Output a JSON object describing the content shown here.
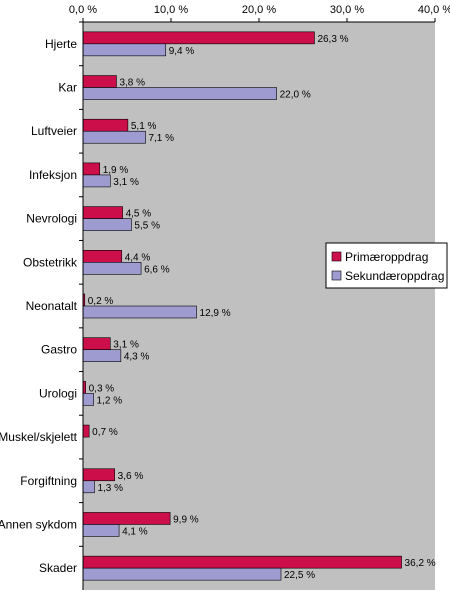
{
  "chart_data": {
    "type": "bar",
    "orientation": "horizontal",
    "categories": [
      "Hjerte",
      "Kar",
      "Luftveier",
      "Infeksjon",
      "Nevrologi",
      "Obstetrikk",
      "Neonatalt",
      "Gastro",
      "Urologi",
      "Muskel/skjelett",
      "Forgiftning",
      "Annen sykdom",
      "Skader"
    ],
    "series": [
      {
        "name": "Primæroppdrag",
        "color": "#cc0e4b",
        "values": [
          26.3,
          3.8,
          5.1,
          1.9,
          4.5,
          4.4,
          0.2,
          3.1,
          0.3,
          0.7,
          3.6,
          9.9,
          36.2
        ],
        "labels": [
          "26,3 %",
          "3,8 %",
          "5,1 %",
          "1,9 %",
          "4,5 %",
          "4,4 %",
          "0,2 %",
          "3,1 %",
          "0,3 %",
          "0,7 %",
          "3,6 %",
          "9,9 %",
          "36,2 %"
        ]
      },
      {
        "name": "Sekundæroppdrag",
        "color": "#9d9bd0",
        "values": [
          9.4,
          22.0,
          7.1,
          3.1,
          5.5,
          6.6,
          12.9,
          4.3,
          1.2,
          null,
          1.3,
          4.1,
          22.5
        ],
        "labels": [
          "9,4 %",
          "22,0 %",
          "7,1 %",
          "3,1 %",
          "5,5 %",
          "6,6 %",
          "12,9 %",
          "4,3 %",
          "1,2 %",
          "",
          "1,3 %",
          "4,1 %",
          "22,5 %"
        ]
      }
    ],
    "xlim": [
      0,
      40
    ],
    "xticks": [
      0,
      10,
      20,
      30,
      40
    ],
    "xtick_labels": [
      "0,0 %",
      "10,0 %",
      "20,0 %",
      "30,0 %",
      "40,0 %"
    ],
    "x_axis_position": "top",
    "plot_background": "#c0c0c0",
    "legend_position": "right"
  }
}
